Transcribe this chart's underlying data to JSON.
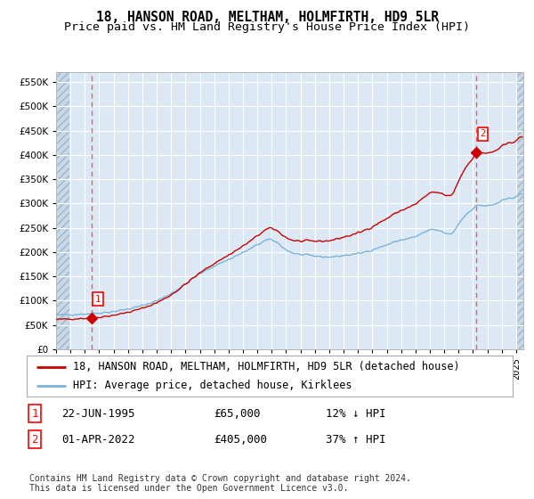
{
  "title": "18, HANSON ROAD, MELTHAM, HOLMFIRTH, HD9 5LR",
  "subtitle": "Price paid vs. HM Land Registry's House Price Index (HPI)",
  "xlim_start": 1993.0,
  "xlim_end": 2025.5,
  "ylim_min": 0,
  "ylim_max": 570000,
  "yticks": [
    0,
    50000,
    100000,
    150000,
    200000,
    250000,
    300000,
    350000,
    400000,
    450000,
    500000,
    550000
  ],
  "ytick_labels": [
    "£0",
    "£50K",
    "£100K",
    "£150K",
    "£200K",
    "£250K",
    "£300K",
    "£350K",
    "£400K",
    "£450K",
    "£500K",
    "£550K"
  ],
  "hpi_line_color": "#7ab4d8",
  "price_line_color": "#cc0000",
  "dashed_vline_color": "#ff5555",
  "background_plot": "#dce9f5",
  "background_hatched": "#c8d8e8",
  "grid_color": "#ffffff",
  "point1_x": 1995.47,
  "point1_y": 65000,
  "point2_x": 2022.25,
  "point2_y": 405000,
  "legend_label1": "18, HANSON ROAD, MELTHAM, HOLMFIRTH, HD9 5LR (detached house)",
  "legend_label2": "HPI: Average price, detached house, Kirklees",
  "note1_num": "1",
  "note1_date": "22-JUN-1995",
  "note1_price": "£65,000",
  "note1_hpi": "12% ↓ HPI",
  "note2_num": "2",
  "note2_date": "01-APR-2022",
  "note2_price": "£405,000",
  "note2_hpi": "37% ↑ HPI",
  "footer": "Contains HM Land Registry data © Crown copyright and database right 2024.\nThis data is licensed under the Open Government Licence v3.0.",
  "title_fontsize": 10.5,
  "subtitle_fontsize": 9.5,
  "tick_fontsize": 7.5,
  "legend_fontsize": 8.5,
  "note_fontsize": 9,
  "footer_fontsize": 7
}
